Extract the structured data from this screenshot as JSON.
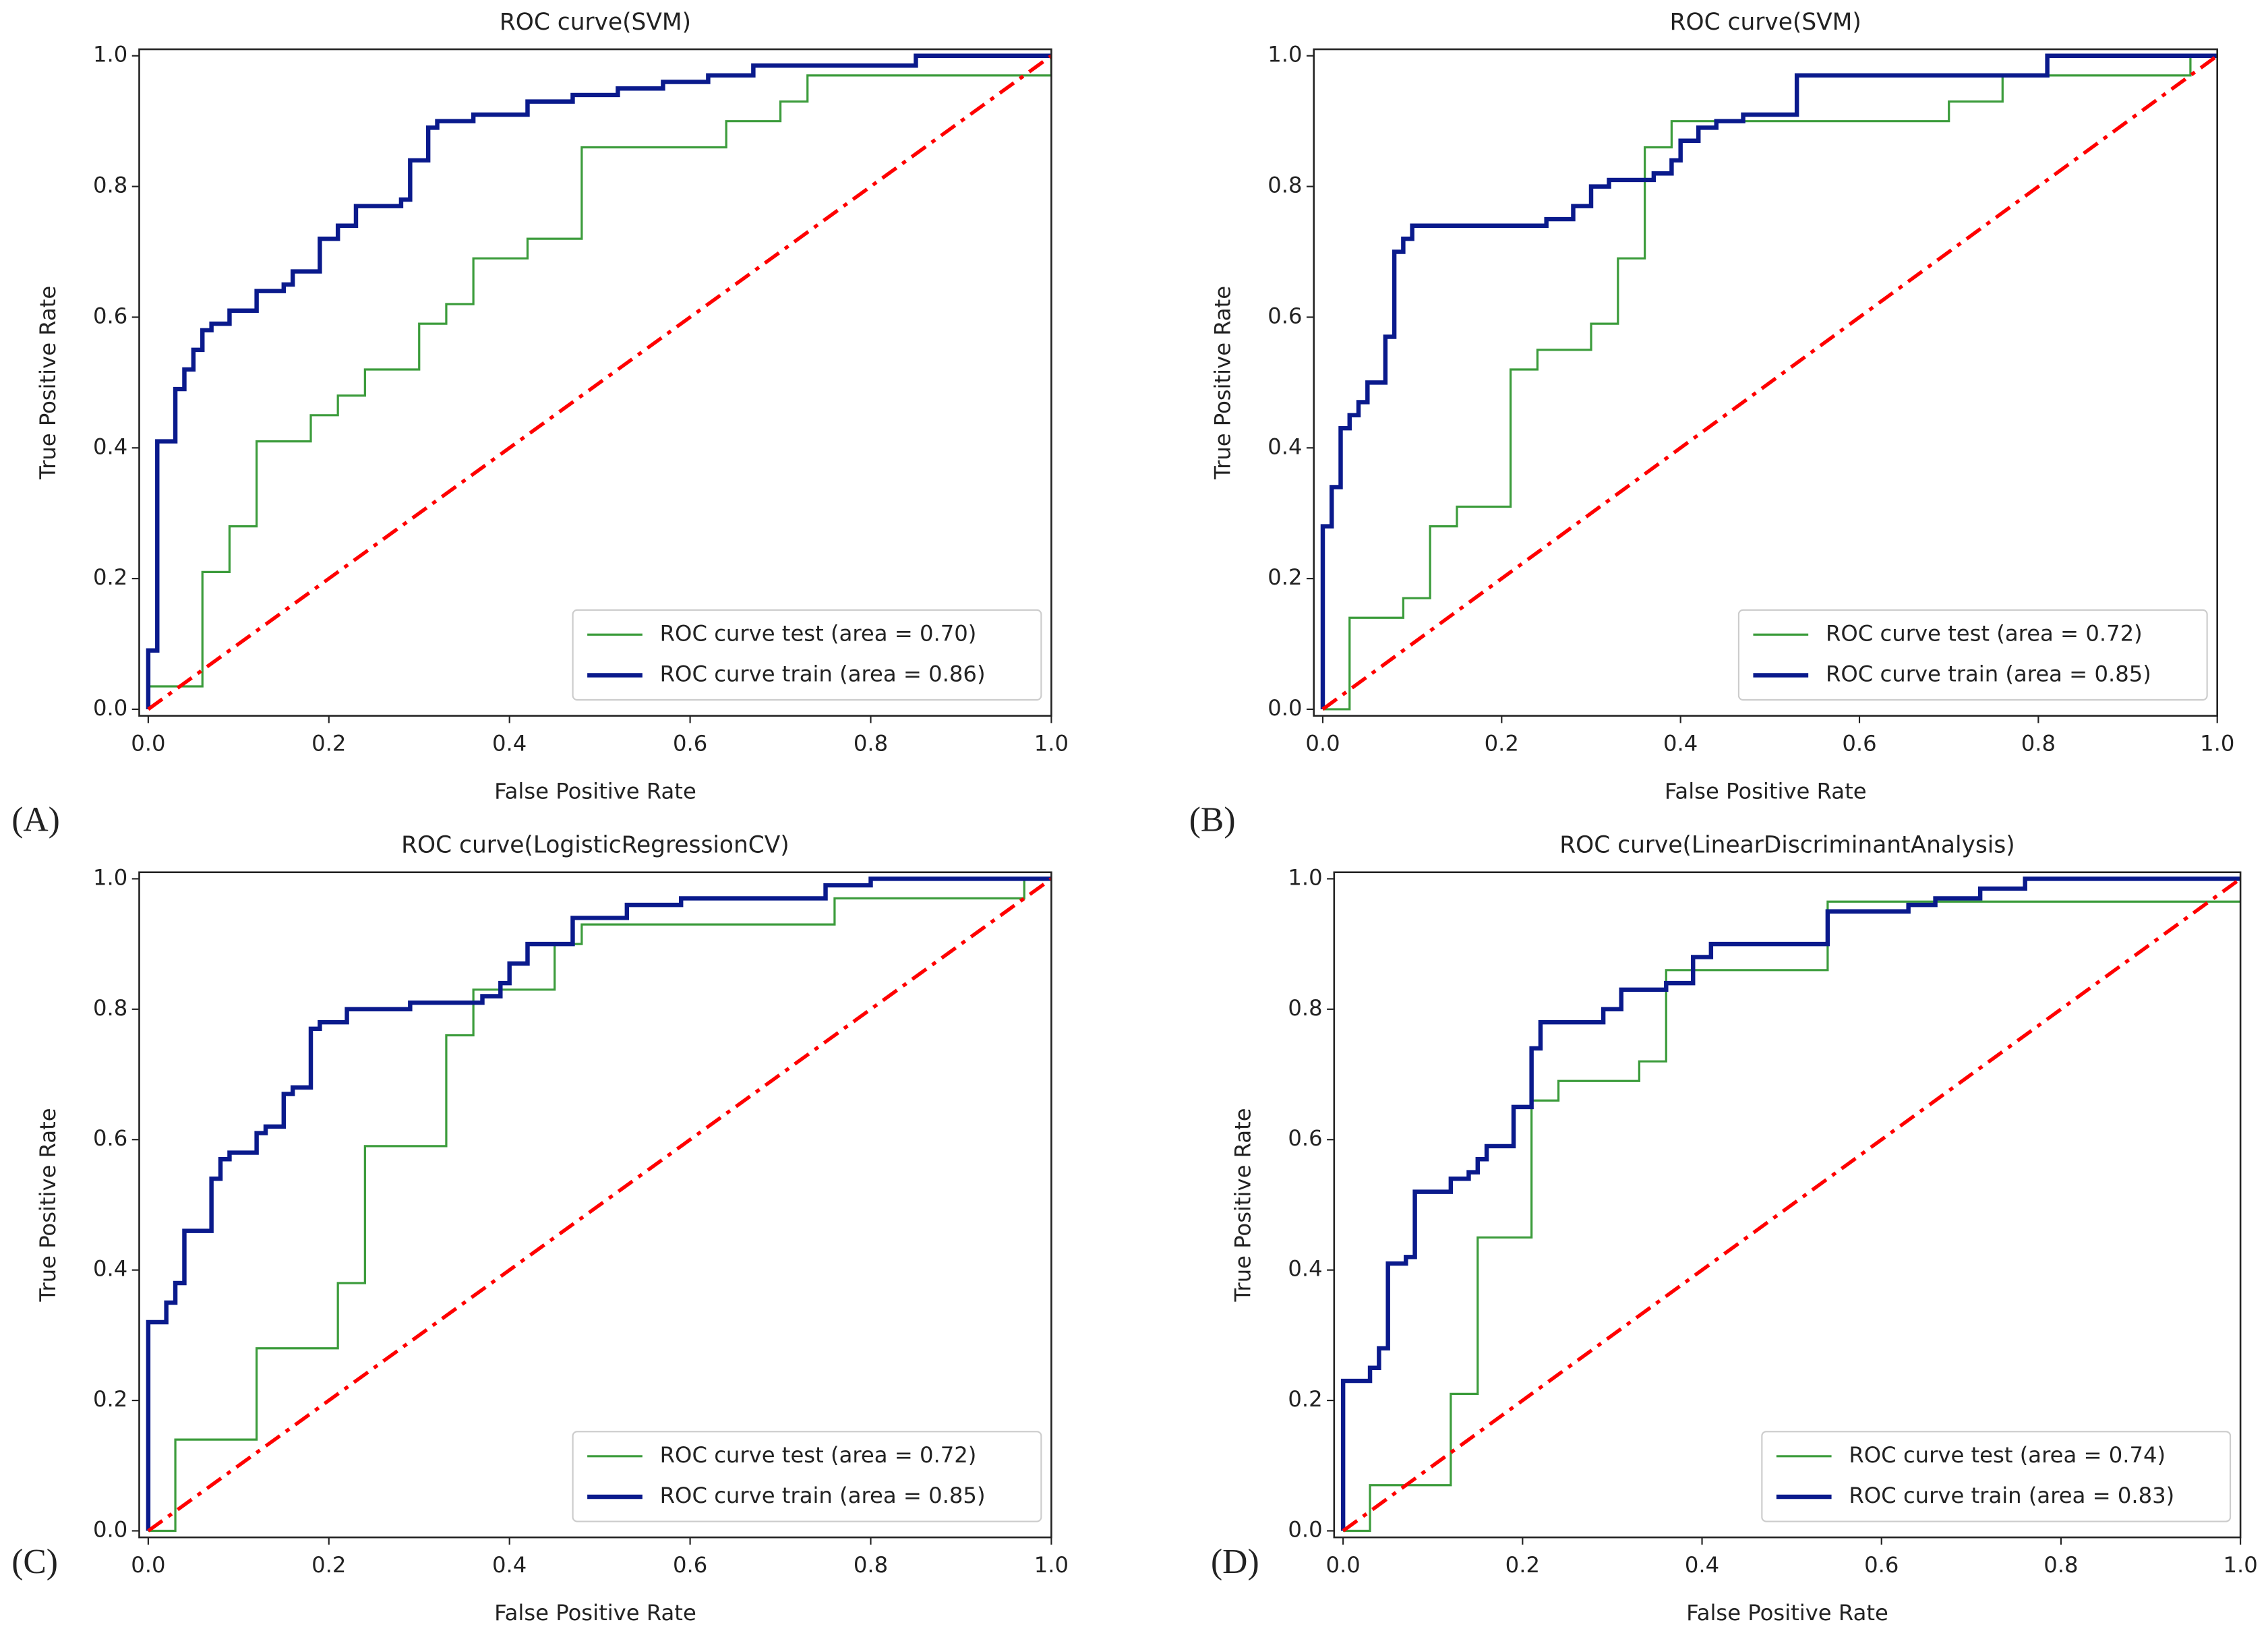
{
  "chart_data": [
    {
      "type": "line",
      "title": "ROC curve(SVM)",
      "panel_label": "(A)",
      "xlabel": "False Positive Rate",
      "ylabel": "True Positive Rate",
      "xlim": [
        -0.01,
        1.0
      ],
      "ylim": [
        -0.01,
        1.01
      ],
      "xticks": [
        {
          "value": 0,
          "label": "0.0"
        },
        {
          "value": 0.2,
          "label": "0.2"
        },
        {
          "value": 0.4,
          "label": "0.4"
        },
        {
          "value": 0.6,
          "label": "0.6"
        },
        {
          "value": 0.8,
          "label": "0.8"
        },
        {
          "value": 1,
          "label": "1.0"
        }
      ],
      "yticks": [
        {
          "value": 0,
          "label": "0.0"
        },
        {
          "value": 0.2,
          "label": "0.2"
        },
        {
          "value": 0.4,
          "label": "0.4"
        },
        {
          "value": 0.6,
          "label": "0.6"
        },
        {
          "value": 0.8,
          "label": "0.8"
        },
        {
          "value": 1,
          "label": "1.0"
        }
      ],
      "legend": "lower right",
      "series": [
        {
          "name": "ROC curve test (area = 0.70)",
          "color": "#3c9c3c",
          "width": 1.5,
          "x": [
            0,
            0,
            0.06,
            0.06,
            0.09,
            0.09,
            0.12,
            0.12,
            0.18,
            0.18,
            0.21,
            0.21,
            0.24,
            0.24,
            0.3,
            0.3,
            0.33,
            0.33,
            0.36,
            0.36,
            0.42,
            0.42,
            0.48,
            0.48,
            0.64,
            0.64,
            0.7,
            0.7,
            0.73,
            0.73,
            1.0,
            1.0
          ],
          "values": [
            0,
            0.035,
            0.035,
            0.21,
            0.21,
            0.28,
            0.28,
            0.41,
            0.41,
            0.45,
            0.45,
            0.48,
            0.48,
            0.52,
            0.52,
            0.59,
            0.59,
            0.62,
            0.62,
            0.69,
            0.69,
            0.72,
            0.72,
            0.86,
            0.86,
            0.9,
            0.9,
            0.93,
            0.93,
            0.97,
            0.97,
            1.0
          ]
        },
        {
          "name": "ROC curve train (area = 0.86)",
          "color": "#0a1a8c",
          "width": 3,
          "x": [
            0,
            0,
            0.01,
            0.01,
            0.03,
            0.03,
            0.04,
            0.04,
            0.05,
            0.05,
            0.06,
            0.06,
            0.07,
            0.07,
            0.09,
            0.09,
            0.12,
            0.12,
            0.15,
            0.15,
            0.16,
            0.16,
            0.19,
            0.19,
            0.21,
            0.21,
            0.23,
            0.23,
            0.28,
            0.28,
            0.29,
            0.29,
            0.31,
            0.31,
            0.32,
            0.32,
            0.36,
            0.36,
            0.42,
            0.42,
            0.47,
            0.47,
            0.52,
            0.52,
            0.57,
            0.57,
            0.62,
            0.62,
            0.67,
            0.67,
            0.85,
            0.85,
            1.0
          ],
          "values": [
            0,
            0.09,
            0.09,
            0.41,
            0.41,
            0.49,
            0.49,
            0.52,
            0.52,
            0.55,
            0.55,
            0.58,
            0.58,
            0.59,
            0.59,
            0.61,
            0.61,
            0.64,
            0.64,
            0.65,
            0.65,
            0.67,
            0.67,
            0.72,
            0.72,
            0.74,
            0.74,
            0.77,
            0.77,
            0.78,
            0.78,
            0.84,
            0.84,
            0.89,
            0.89,
            0.9,
            0.9,
            0.91,
            0.91,
            0.93,
            0.93,
            0.94,
            0.94,
            0.95,
            0.95,
            0.96,
            0.96,
            0.97,
            0.97,
            0.985,
            0.985,
            1.0,
            1.0
          ]
        },
        {
          "color": "red",
          "width": 2.5,
          "dash": "dashdot",
          "x": [
            0,
            1
          ],
          "values": [
            0,
            1
          ]
        }
      ]
    },
    {
      "type": "line",
      "title": "ROC curve(SVM)",
      "panel_label": "(B)",
      "xlabel": "False Positive Rate",
      "ylabel": "True Positive Rate",
      "xlim": [
        -0.01,
        1.0
      ],
      "ylim": [
        -0.01,
        1.01
      ],
      "xticks": [
        {
          "value": 0,
          "label": "0.0"
        },
        {
          "value": 0.2,
          "label": "0.2"
        },
        {
          "value": 0.4,
          "label": "0.4"
        },
        {
          "value": 0.6,
          "label": "0.6"
        },
        {
          "value": 0.8,
          "label": "0.8"
        },
        {
          "value": 1,
          "label": "1.0"
        }
      ],
      "yticks": [
        {
          "value": 0,
          "label": "0.0"
        },
        {
          "value": 0.2,
          "label": "0.2"
        },
        {
          "value": 0.4,
          "label": "0.4"
        },
        {
          "value": 0.6,
          "label": "0.6"
        },
        {
          "value": 0.8,
          "label": "0.8"
        },
        {
          "value": 1,
          "label": "1.0"
        }
      ],
      "legend": "lower right",
      "series": [
        {
          "name": "ROC curve test (area = 0.72)",
          "color": "#3c9c3c",
          "width": 1.5,
          "x": [
            0,
            0.03,
            0.03,
            0.09,
            0.09,
            0.12,
            0.12,
            0.15,
            0.15,
            0.21,
            0.21,
            0.24,
            0.24,
            0.3,
            0.3,
            0.33,
            0.33,
            0.36,
            0.36,
            0.39,
            0.39,
            0.7,
            0.7,
            0.76,
            0.76,
            0.97,
            0.97,
            1.0
          ],
          "values": [
            0,
            0,
            0.14,
            0.14,
            0.17,
            0.17,
            0.28,
            0.28,
            0.31,
            0.31,
            0.52,
            0.52,
            0.55,
            0.55,
            0.59,
            0.59,
            0.69,
            0.69,
            0.86,
            0.86,
            0.9,
            0.9,
            0.93,
            0.93,
            0.97,
            0.97,
            1.0,
            1.0
          ]
        },
        {
          "name": "ROC curve train (area = 0.85)",
          "color": "#0a1a8c",
          "width": 3,
          "x": [
            0,
            0,
            0.01,
            0.01,
            0.02,
            0.02,
            0.03,
            0.03,
            0.04,
            0.04,
            0.05,
            0.05,
            0.07,
            0.07,
            0.08,
            0.08,
            0.09,
            0.09,
            0.1,
            0.1,
            0.25,
            0.25,
            0.28,
            0.28,
            0.3,
            0.3,
            0.32,
            0.32,
            0.37,
            0.37,
            0.39,
            0.39,
            0.4,
            0.4,
            0.42,
            0.42,
            0.44,
            0.44,
            0.47,
            0.47,
            0.53,
            0.53,
            0.81,
            0.81,
            1.0
          ],
          "values": [
            0,
            0.28,
            0.28,
            0.34,
            0.34,
            0.43,
            0.43,
            0.45,
            0.45,
            0.47,
            0.47,
            0.5,
            0.5,
            0.57,
            0.57,
            0.7,
            0.7,
            0.72,
            0.72,
            0.74,
            0.74,
            0.75,
            0.75,
            0.77,
            0.77,
            0.8,
            0.8,
            0.81,
            0.81,
            0.82,
            0.82,
            0.84,
            0.84,
            0.87,
            0.87,
            0.89,
            0.89,
            0.9,
            0.9,
            0.91,
            0.91,
            0.97,
            0.97,
            1.0,
            1.0
          ]
        },
        {
          "color": "red",
          "width": 2.5,
          "dash": "dashdot",
          "x": [
            0,
            1
          ],
          "values": [
            0,
            1
          ]
        }
      ]
    },
    {
      "type": "line",
      "title": "ROC curve(LogisticRegressionCV)",
      "panel_label": "(C)",
      "xlabel": "False Positive Rate",
      "ylabel": "True Positive Rate",
      "xlim": [
        -0.01,
        1.0
      ],
      "ylim": [
        -0.01,
        1.01
      ],
      "xticks": [
        {
          "value": 0,
          "label": "0.0"
        },
        {
          "value": 0.2,
          "label": "0.2"
        },
        {
          "value": 0.4,
          "label": "0.4"
        },
        {
          "value": 0.6,
          "label": "0.6"
        },
        {
          "value": 0.8,
          "label": "0.8"
        },
        {
          "value": 1,
          "label": "1.0"
        }
      ],
      "yticks": [
        {
          "value": 0,
          "label": "0.0"
        },
        {
          "value": 0.2,
          "label": "0.2"
        },
        {
          "value": 0.4,
          "label": "0.4"
        },
        {
          "value": 0.6,
          "label": "0.6"
        },
        {
          "value": 0.8,
          "label": "0.8"
        },
        {
          "value": 1,
          "label": "1.0"
        }
      ],
      "legend": "lower right",
      "series": [
        {
          "name": "ROC curve test (area = 0.72)",
          "color": "#3c9c3c",
          "width": 1.5,
          "x": [
            0,
            0.03,
            0.03,
            0.12,
            0.12,
            0.21,
            0.21,
            0.24,
            0.24,
            0.33,
            0.33,
            0.36,
            0.36,
            0.45,
            0.45,
            0.48,
            0.48,
            0.76,
            0.76,
            0.97,
            0.97,
            1.0
          ],
          "values": [
            0,
            0,
            0.14,
            0.14,
            0.28,
            0.28,
            0.38,
            0.38,
            0.59,
            0.59,
            0.76,
            0.76,
            0.83,
            0.83,
            0.9,
            0.9,
            0.93,
            0.93,
            0.97,
            0.97,
            1.0,
            1.0
          ]
        },
        {
          "name": "ROC curve train (area = 0.85)",
          "color": "#0a1a8c",
          "width": 3,
          "x": [
            0,
            0,
            0.02,
            0.02,
            0.03,
            0.03,
            0.04,
            0.04,
            0.07,
            0.07,
            0.08,
            0.08,
            0.09,
            0.09,
            0.12,
            0.12,
            0.13,
            0.13,
            0.15,
            0.15,
            0.16,
            0.16,
            0.18,
            0.18,
            0.19,
            0.19,
            0.22,
            0.22,
            0.29,
            0.29,
            0.37,
            0.37,
            0.39,
            0.39,
            0.4,
            0.4,
            0.42,
            0.42,
            0.47,
            0.47,
            0.53,
            0.53,
            0.59,
            0.59,
            0.75,
            0.75,
            0.8,
            0.8,
            1.0
          ],
          "values": [
            0,
            0.32,
            0.32,
            0.35,
            0.35,
            0.38,
            0.38,
            0.46,
            0.46,
            0.54,
            0.54,
            0.57,
            0.57,
            0.58,
            0.58,
            0.61,
            0.61,
            0.62,
            0.62,
            0.67,
            0.67,
            0.68,
            0.68,
            0.77,
            0.77,
            0.78,
            0.78,
            0.8,
            0.8,
            0.81,
            0.81,
            0.82,
            0.82,
            0.84,
            0.84,
            0.87,
            0.87,
            0.9,
            0.9,
            0.94,
            0.94,
            0.96,
            0.96,
            0.97,
            0.97,
            0.99,
            0.99,
            1.0,
            1.0
          ]
        },
        {
          "color": "red",
          "width": 2.5,
          "dash": "dashdot",
          "x": [
            0,
            1
          ],
          "values": [
            0,
            1
          ]
        }
      ]
    },
    {
      "type": "line",
      "title": "ROC curve(LinearDiscriminantAnalysis)",
      "panel_label": "(D)",
      "xlabel": "False Positive Rate",
      "ylabel": "True Positive Rate",
      "xlim": [
        -0.01,
        1.0
      ],
      "ylim": [
        -0.01,
        1.01
      ],
      "xticks": [
        {
          "value": 0,
          "label": "0.0"
        },
        {
          "value": 0.2,
          "label": "0.2"
        },
        {
          "value": 0.4,
          "label": "0.4"
        },
        {
          "value": 0.6,
          "label": "0.6"
        },
        {
          "value": 0.8,
          "label": "0.8"
        },
        {
          "value": 1,
          "label": "1.0"
        }
      ],
      "yticks": [
        {
          "value": 0,
          "label": "0.0"
        },
        {
          "value": 0.2,
          "label": "0.2"
        },
        {
          "value": 0.4,
          "label": "0.4"
        },
        {
          "value": 0.6,
          "label": "0.6"
        },
        {
          "value": 0.8,
          "label": "0.8"
        },
        {
          "value": 1,
          "label": "1.0"
        }
      ],
      "legend": "lower right",
      "series": [
        {
          "name": "ROC curve test (area = 0.74)",
          "color": "#3c9c3c",
          "width": 1.5,
          "x": [
            0,
            0.03,
            0.03,
            0.12,
            0.12,
            0.15,
            0.15,
            0.21,
            0.21,
            0.24,
            0.24,
            0.33,
            0.33,
            0.36,
            0.36,
            0.54,
            0.54,
            1.0
          ],
          "values": [
            0,
            0,
            0.07,
            0.07,
            0.21,
            0.21,
            0.45,
            0.45,
            0.66,
            0.66,
            0.69,
            0.69,
            0.72,
            0.72,
            0.86,
            0.86,
            0.965,
            0.965
          ]
        },
        {
          "name": "ROC curve train (area = 0.83)",
          "color": "#0a1a8c",
          "width": 3,
          "x": [
            0,
            0,
            0.03,
            0.03,
            0.04,
            0.04,
            0.05,
            0.05,
            0.07,
            0.07,
            0.08,
            0.08,
            0.12,
            0.12,
            0.14,
            0.14,
            0.15,
            0.15,
            0.16,
            0.16,
            0.19,
            0.19,
            0.21,
            0.21,
            0.22,
            0.22,
            0.29,
            0.29,
            0.31,
            0.31,
            0.36,
            0.36,
            0.39,
            0.39,
            0.41,
            0.41,
            0.54,
            0.54,
            0.63,
            0.63,
            0.66,
            0.66,
            0.71,
            0.71,
            0.76,
            0.76,
            1.0
          ],
          "values": [
            0,
            0.23,
            0.23,
            0.25,
            0.25,
            0.28,
            0.28,
            0.41,
            0.41,
            0.42,
            0.42,
            0.52,
            0.52,
            0.54,
            0.54,
            0.55,
            0.55,
            0.57,
            0.57,
            0.59,
            0.59,
            0.65,
            0.65,
            0.74,
            0.74,
            0.78,
            0.78,
            0.8,
            0.8,
            0.83,
            0.83,
            0.84,
            0.84,
            0.88,
            0.88,
            0.9,
            0.9,
            0.95,
            0.95,
            0.96,
            0.96,
            0.97,
            0.97,
            0.985,
            0.985,
            1.0,
            1.0
          ]
        },
        {
          "color": "red",
          "width": 2.5,
          "dash": "dashdot",
          "x": [
            0,
            1
          ],
          "values": [
            0,
            1
          ]
        }
      ]
    }
  ]
}
